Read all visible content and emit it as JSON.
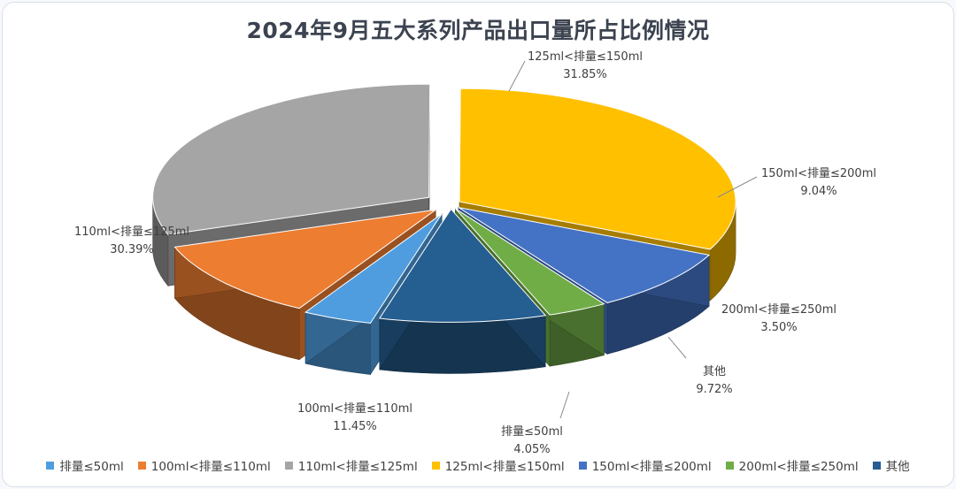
{
  "chart_data": {
    "type": "pie",
    "title": "2024年9月五大系列产品出口量所占比例情况",
    "slices": [
      {
        "label": "排量≤50ml",
        "value": 4.05,
        "value_label": "4.05%",
        "color": "#4f9ddf"
      },
      {
        "label": "100ml<排量≤110ml",
        "value": 11.45,
        "value_label": "11.45%",
        "color": "#ed7d31"
      },
      {
        "label": "110ml<排量≤125ml",
        "value": 30.39,
        "value_label": "30.39%",
        "color": "#a5a5a5"
      },
      {
        "label": "125ml<排量≤150ml",
        "value": 31.85,
        "value_label": "31.85%",
        "color": "#ffc000"
      },
      {
        "label": "150ml<排量≤200ml",
        "value": 9.04,
        "value_label": "9.04%",
        "color": "#4472c4"
      },
      {
        "label": "200ml<排量≤250ml",
        "value": 3.5,
        "value_label": "3.50%",
        "color": "#70ad47"
      },
      {
        "label": "其他",
        "value": 9.72,
        "value_label": "9.72%",
        "color": "#255e91"
      }
    ],
    "legend_position": "bottom"
  }
}
